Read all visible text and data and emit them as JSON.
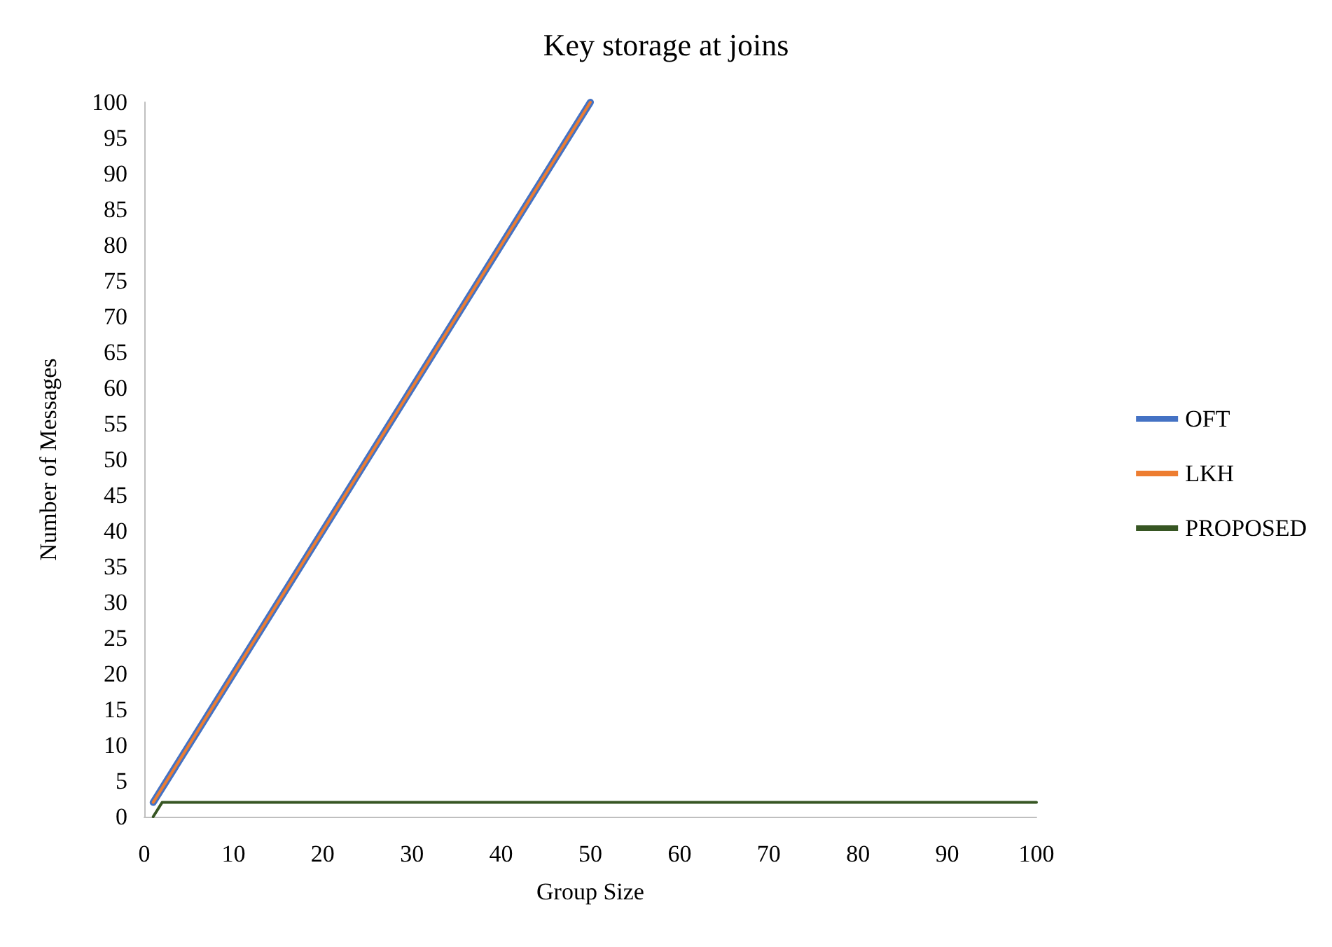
{
  "chart_data": {
    "type": "line",
    "title": "Key storage at joins",
    "xlabel": "Group Size",
    "ylabel": "Number of Messages",
    "series": [
      {
        "name": "OFT",
        "color": "#4472c4",
        "x": [
          1,
          50
        ],
        "values": [
          2,
          100
        ]
      },
      {
        "name": "LKH",
        "color": "#ed7d31",
        "x": [
          1,
          50
        ],
        "values": [
          2,
          100
        ]
      },
      {
        "name": "PROPOSED",
        "color": "#375623",
        "x": [
          1,
          2,
          100
        ],
        "values": [
          0,
          2,
          2
        ]
      }
    ],
    "xlim": [
      0,
      100
    ],
    "xticks": [
      0,
      10,
      20,
      30,
      40,
      50,
      60,
      70,
      80,
      90,
      100
    ],
    "ylim": [
      0,
      100
    ],
    "yticks": [
      0,
      5,
      10,
      15,
      20,
      25,
      30,
      35,
      40,
      45,
      50,
      55,
      60,
      65,
      70,
      75,
      80,
      85,
      90,
      95,
      100
    ],
    "grid": false,
    "legend": "right",
    "marker": "none",
    "line_style": "solid"
  }
}
